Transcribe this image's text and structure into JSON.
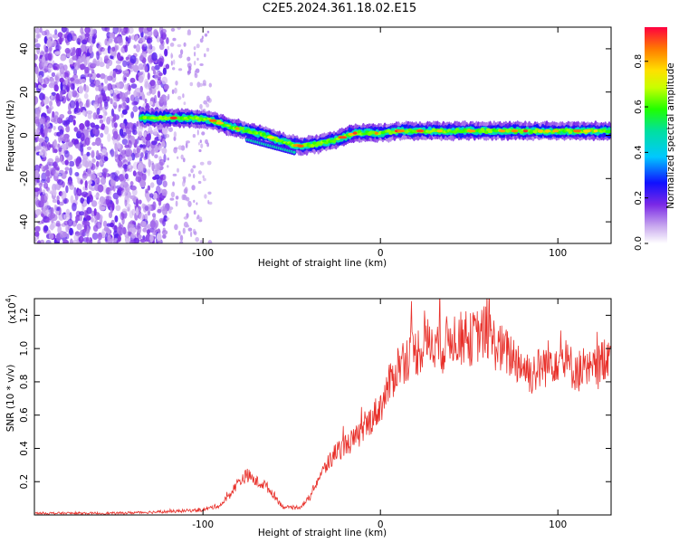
{
  "title": "C2E5.2024.361.18.02.E15",
  "chart_data": [
    {
      "type": "heatmap",
      "xlabel": "Height of straight line (km)",
      "ylabel": "Frequency (Hz)",
      "xlim": [
        -195,
        130
      ],
      "ylim": [
        -50,
        50
      ],
      "x_ticks": [
        -100,
        0,
        100
      ],
      "y_ticks": [
        -40,
        -20,
        0,
        20,
        40
      ],
      "colorbar": {
        "label": "Normalized spectral amplitude",
        "range": [
          0,
          0.95
        ],
        "ticks": [
          "0.0",
          "0.2",
          "0.4",
          "0.6",
          "0.8"
        ]
      },
      "ridge": {
        "x": [
          -135,
          -120,
          -105,
          -95,
          -85,
          -75,
          -65,
          -55,
          -45,
          -35,
          -25,
          -15,
          -5,
          0,
          10,
          30,
          60,
          90,
          130
        ],
        "y": [
          8,
          8,
          8,
          7,
          4,
          2,
          0,
          -3,
          -5,
          -4,
          -2,
          1,
          1,
          1,
          2,
          2,
          2,
          2,
          2
        ]
      }
    },
    {
      "type": "line",
      "xlabel": "Height of straight line (km)",
      "ylabel": "SNR (10 * v/v)",
      "y_multiplier": "(x10",
      "y_multiplier_exp": "4",
      "xlim": [
        -195,
        130
      ],
      "ylim": [
        0,
        1.3
      ],
      "x_ticks": [
        -100,
        0,
        100
      ],
      "y_ticks": [
        "0.2",
        "0.4",
        "0.6",
        "0.8",
        "1.0",
        "1.2"
      ],
      "series": [
        {
          "color": "#e8302a",
          "x": [
            -195,
            -150,
            -120,
            -100,
            -90,
            -85,
            -80,
            -75,
            -70,
            -65,
            -60,
            -55,
            -50,
            -45,
            -40,
            -35,
            -30,
            -25,
            -20,
            -15,
            -10,
            -5,
            0,
            5,
            10,
            15,
            20,
            25,
            30,
            35,
            40,
            45,
            50,
            55,
            60,
            65,
            70,
            75,
            80,
            85,
            90,
            95,
            100,
            105,
            110,
            115,
            120,
            125,
            130
          ],
          "y": [
            0.01,
            0.01,
            0.02,
            0.03,
            0.06,
            0.12,
            0.2,
            0.24,
            0.2,
            0.18,
            0.12,
            0.05,
            0.04,
            0.05,
            0.1,
            0.22,
            0.3,
            0.38,
            0.42,
            0.45,
            0.5,
            0.58,
            0.65,
            0.78,
            0.9,
            0.95,
            0.98,
            1.02,
            1.05,
            1.0,
            1.08,
            1.06,
            1.05,
            1.08,
            1.1,
            1.02,
            0.98,
            0.95,
            0.9,
            0.85,
            0.88,
            0.92,
            0.95,
            0.9,
            0.88,
            0.85,
            0.86,
            0.92,
            1.02
          ]
        }
      ]
    }
  ]
}
